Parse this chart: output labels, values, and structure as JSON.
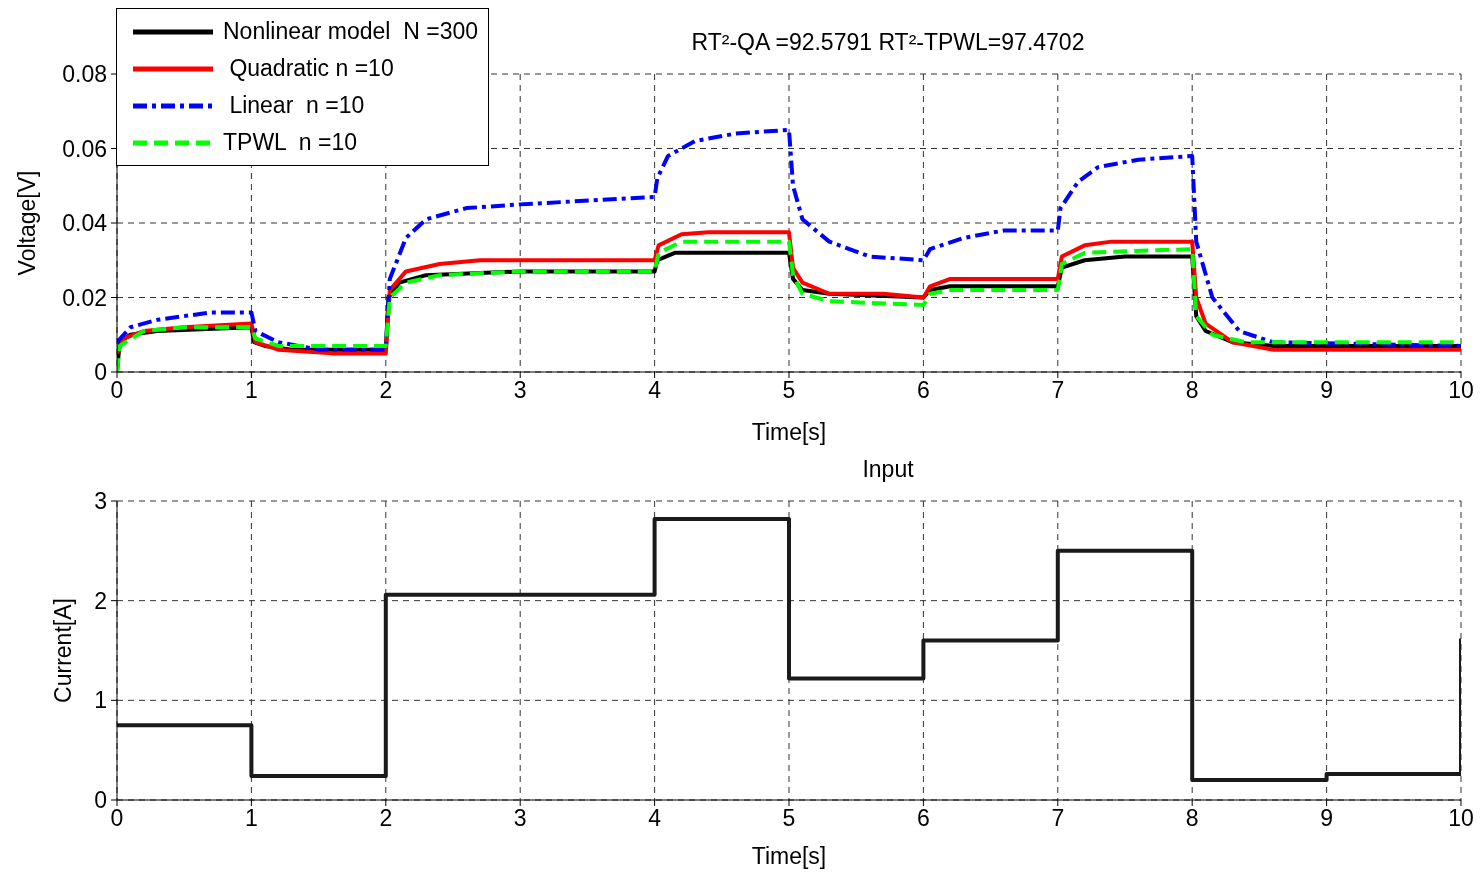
{
  "chart_data": [
    {
      "type": "line",
      "title": "RT²-QA =92.5791 RT²-TPWL=97.4702",
      "xlabel": "Time[s]",
      "ylabel": "Voltage[V]",
      "xlim": [
        0,
        10
      ],
      "xticks": [
        0,
        1,
        2,
        3,
        4,
        5,
        6,
        7,
        8,
        9,
        10
      ],
      "ylim": [
        0,
        0.08
      ],
      "yticks": [
        0,
        0.02,
        0.04,
        0.06,
        0.08
      ],
      "grid": true,
      "legend": "top left",
      "marker": "none",
      "series": [
        {
          "name": "Nonlinear model  N =300",
          "color": "#000000",
          "line_style": "solid",
          "x": [
            0,
            0.02,
            0.1,
            0.3,
            1,
            1.02,
            1.1,
            1.3,
            2,
            2.02,
            2.1,
            2.3,
            3,
            4,
            4.02,
            4.15,
            5,
            5.03,
            5.1,
            5.3,
            6,
            6.05,
            6.2,
            7,
            7.03,
            7.2,
            7.5,
            8,
            8.03,
            8.1,
            8.3,
            8.6,
            10
          ],
          "values": [
            0,
            0.008,
            0.01,
            0.011,
            0.012,
            0.008,
            0.007,
            0.006,
            0.006,
            0.02,
            0.024,
            0.026,
            0.027,
            0.027,
            0.03,
            0.032,
            0.032,
            0.025,
            0.022,
            0.021,
            0.02,
            0.022,
            0.023,
            0.023,
            0.028,
            0.03,
            0.031,
            0.031,
            0.015,
            0.011,
            0.008,
            0.007,
            0.007
          ]
        },
        {
          "name": " Quadratic n =10",
          "color": "#ff0000",
          "line_style": "solid",
          "x": [
            0,
            0.05,
            0.2,
            0.5,
            1,
            1.03,
            1.2,
            1.6,
            2,
            2.03,
            2.15,
            2.4,
            2.7,
            4,
            4.03,
            4.2,
            4.4,
            5,
            5.03,
            5.1,
            5.3,
            5.7,
            6,
            6.05,
            6.2,
            7,
            7.03,
            7.2,
            7.4,
            8,
            8.03,
            8.1,
            8.3,
            8.6,
            10
          ],
          "values": [
            0.005,
            0.009,
            0.011,
            0.012,
            0.013,
            0.008,
            0.006,
            0.005,
            0.005,
            0.022,
            0.027,
            0.029,
            0.03,
            0.03,
            0.034,
            0.037,
            0.0375,
            0.0375,
            0.028,
            0.024,
            0.021,
            0.021,
            0.02,
            0.023,
            0.025,
            0.025,
            0.031,
            0.034,
            0.035,
            0.035,
            0.02,
            0.013,
            0.008,
            0.006,
            0.006
          ]
        },
        {
          "name": " Linear  n =10",
          "color": "#0000ff",
          "line_style": "dashdot",
          "x": [
            0,
            0.1,
            0.3,
            0.7,
            1,
            1.03,
            1.2,
            1.5,
            2,
            2.03,
            2.15,
            2.3,
            2.6,
            3,
            4,
            4.02,
            4.1,
            4.3,
            4.6,
            5,
            5.03,
            5.1,
            5.3,
            5.6,
            6,
            6.05,
            6.3,
            6.6,
            7,
            7.02,
            7.15,
            7.3,
            7.6,
            8,
            8.03,
            8.15,
            8.35,
            8.6,
            10
          ],
          "values": [
            0.008,
            0.012,
            0.014,
            0.016,
            0.016,
            0.011,
            0.008,
            0.006,
            0.006,
            0.025,
            0.036,
            0.041,
            0.044,
            0.045,
            0.047,
            0.052,
            0.058,
            0.062,
            0.064,
            0.065,
            0.05,
            0.041,
            0.035,
            0.031,
            0.03,
            0.033,
            0.036,
            0.038,
            0.038,
            0.044,
            0.051,
            0.055,
            0.057,
            0.058,
            0.035,
            0.02,
            0.011,
            0.008,
            0.007
          ]
        },
        {
          "name": "TPWL  n =10",
          "color": "#00ff00",
          "line_style": "dashed",
          "x": [
            0,
            0.02,
            0.2,
            0.5,
            1,
            1.03,
            1.2,
            2,
            2.03,
            2.15,
            2.4,
            3,
            4,
            4.03,
            4.2,
            5,
            5.03,
            5.1,
            5.3,
            6,
            6.05,
            6.2,
            7,
            7.03,
            7.2,
            8,
            8.03,
            8.15,
            8.4,
            10
          ],
          "values": [
            0,
            0.007,
            0.011,
            0.012,
            0.012,
            0.009,
            0.007,
            0.007,
            0.02,
            0.024,
            0.026,
            0.027,
            0.027,
            0.032,
            0.035,
            0.035,
            0.026,
            0.021,
            0.019,
            0.018,
            0.021,
            0.022,
            0.022,
            0.029,
            0.032,
            0.033,
            0.015,
            0.01,
            0.008,
            0.008
          ]
        }
      ]
    },
    {
      "type": "step",
      "title": "Input",
      "xlabel": "Time[s]",
      "ylabel": "Current[A]",
      "xlim": [
        0,
        10
      ],
      "xticks": [
        0,
        1,
        2,
        3,
        4,
        5,
        6,
        7,
        8,
        9,
        10
      ],
      "ylim": [
        0,
        3
      ],
      "yticks": [
        0,
        1,
        2,
        3
      ],
      "grid": true,
      "legend": false,
      "marker": "none",
      "series": [
        {
          "color": "#1a1a1a",
          "line_style": "solid",
          "x": [
            0,
            1,
            2,
            4,
            5,
            6,
            7,
            8,
            9,
            10
          ],
          "values": [
            0.75,
            0.24,
            2.06,
            2.82,
            1.22,
            1.6,
            2.5,
            0.2,
            0.26,
            1.62
          ]
        }
      ]
    }
  ]
}
